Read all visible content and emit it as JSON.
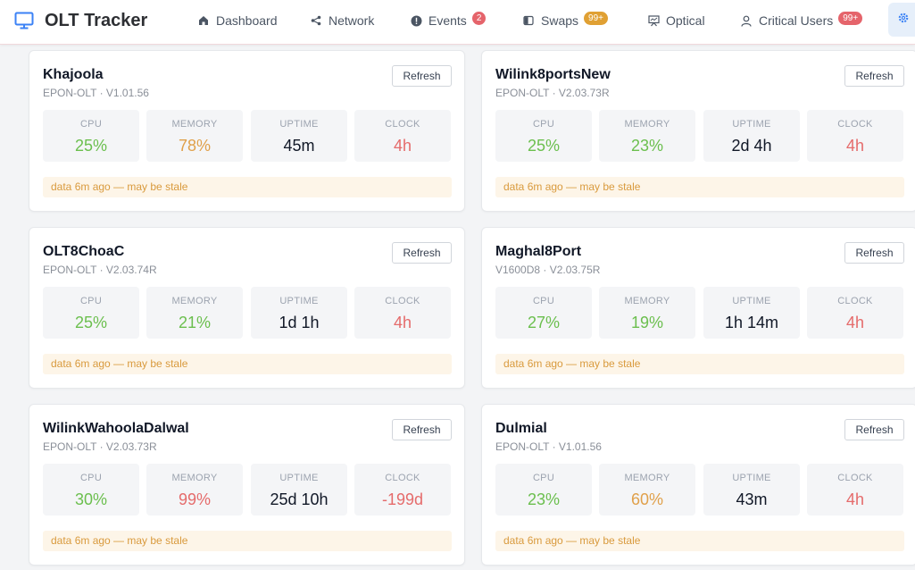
{
  "app": {
    "title": "OLT Tracker"
  },
  "nav": {
    "dashboard": "Dashboard",
    "network": "Network",
    "events": "Events",
    "events_badge": "2",
    "swaps": "Swaps",
    "swaps_badge": "99+",
    "optical": "Optical",
    "critical_users": "Critical Users",
    "critical_badge": "99+"
  },
  "metric_labels": {
    "cpu": "CPU",
    "memory": "MEMORY",
    "uptime": "UPTIME",
    "clock": "CLOCK"
  },
  "refresh_label": "Refresh",
  "colors": {
    "good": "#6bbf4e",
    "warn": "#e0a04a",
    "bad": "#e56b6b",
    "accent": "#3b82f6"
  },
  "cards": [
    {
      "name": "Khajoola",
      "model": "EPON-OLT · V1.01.56",
      "cpu": "25%",
      "memory": "78%",
      "uptime": "45m",
      "clock": "4h",
      "stale": "data 6m ago — may be stale"
    },
    {
      "name": "Wilink8portsNew",
      "model": "EPON-OLT · V2.03.73R",
      "cpu": "25%",
      "memory": "23%",
      "uptime": "2d 4h",
      "clock": "4h",
      "stale": "data 6m ago — may be stale"
    },
    {
      "name": "OLT8ChoaC",
      "model": "EPON-OLT · V2.03.74R",
      "cpu": "25%",
      "memory": "21%",
      "uptime": "1d 1h",
      "clock": "4h",
      "stale": "data 6m ago — may be stale"
    },
    {
      "name": "Maghal8Port",
      "model": "V1600D8 · V2.03.75R",
      "cpu": "27%",
      "memory": "19%",
      "uptime": "1h 14m",
      "clock": "4h",
      "stale": "data 6m ago — may be stale"
    },
    {
      "name": "WilinkWahoolaDalwal",
      "model": "EPON-OLT · V2.03.73R",
      "cpu": "30%",
      "memory": "99%",
      "uptime": "25d 10h",
      "clock": "-199d",
      "stale": "data 6m ago — may be stale"
    },
    {
      "name": "Dulmial",
      "model": "EPON-OLT · V1.01.56",
      "cpu": "23%",
      "memory": "60%",
      "uptime": "43m",
      "clock": "4h",
      "stale": "data 6m ago — may be stale"
    }
  ]
}
